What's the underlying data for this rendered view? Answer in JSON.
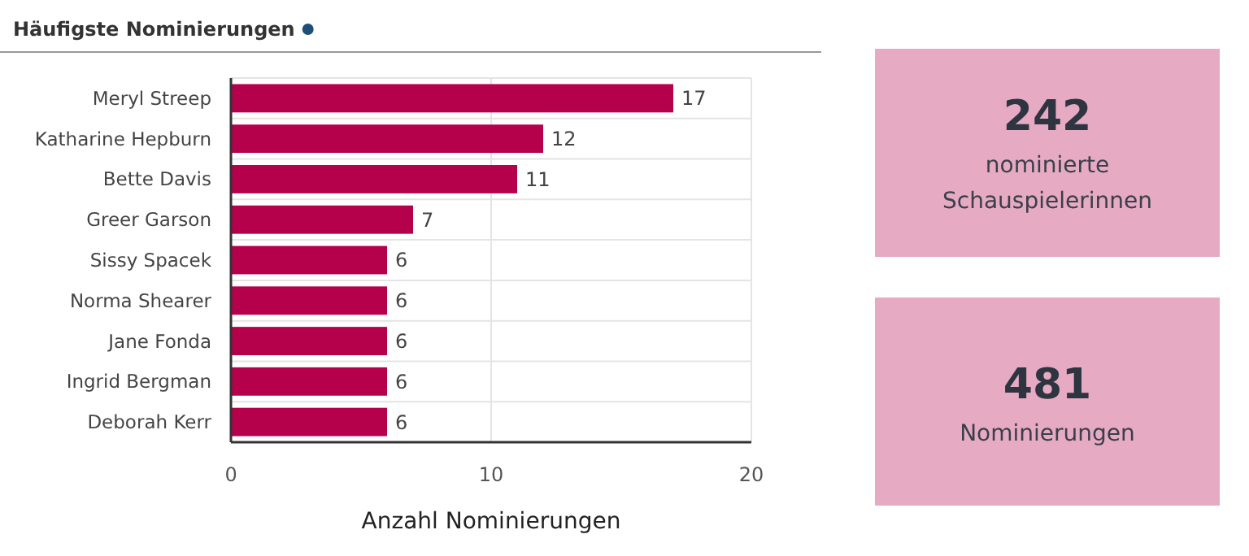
{
  "chart_data": [
    {
      "type": "bar",
      "orientation": "horizontal",
      "title": "Häufigste Nominierungen",
      "xlabel": "Anzahl Nominierungen",
      "categories": [
        "Meryl Streep",
        "Katharine Hepburn",
        "Bette Davis",
        "Greer Garson",
        "Sissy Spacek",
        "Norma Shearer",
        "Jane Fonda",
        "Ingrid Bergman",
        "Deborah Kerr"
      ],
      "values": [
        17,
        12,
        11,
        7,
        6,
        6,
        6,
        6,
        6
      ],
      "color": "#b5004c",
      "xlim": [
        0,
        20
      ],
      "xticks": [
        0,
        10,
        20
      ],
      "grid": true,
      "data_labels": true
    },
    {
      "type": "other",
      "title": "242",
      "subtitle": "nominierte Schauspielerinnen",
      "color": "#e6aac3"
    },
    {
      "type": "other",
      "title": "481",
      "subtitle": "Nominierungen",
      "color": "#e6aac3"
    }
  ]
}
